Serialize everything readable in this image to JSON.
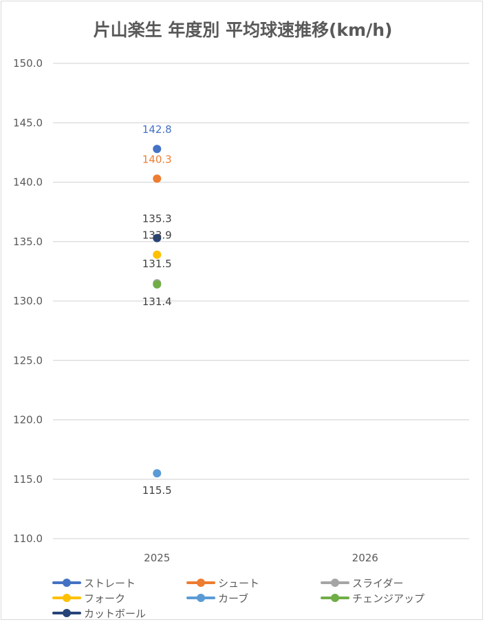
{
  "chart_data": {
    "type": "scatter",
    "title": "片山楽生 年度別 平均球速推移(km/h)",
    "categories": [
      "2025",
      "2026"
    ],
    "ylim": [
      110,
      150
    ],
    "yticks": [
      "150.0",
      "145.0",
      "140.0",
      "135.0",
      "130.0",
      "125.0",
      "120.0",
      "115.0",
      "110.0"
    ],
    "grid": true,
    "legend_position": "bottom",
    "series": [
      {
        "name": "ストレート",
        "color": "#4472c4",
        "values": [
          142.8,
          null
        ],
        "labels": [
          "142.8",
          ""
        ],
        "label_pos": "above",
        "label_color": "#4472c4"
      },
      {
        "name": "シュート",
        "color": "#ed7d31",
        "values": [
          140.3,
          null
        ],
        "labels": [
          "140.3",
          ""
        ],
        "label_pos": "above",
        "label_color": "#ed7d31"
      },
      {
        "name": "スライダー",
        "color": "#a5a5a5",
        "values": [
          131.5,
          null
        ],
        "labels": [
          "131.5",
          ""
        ],
        "label_pos": "above",
        "label_color": "#404040"
      },
      {
        "name": "フォーク",
        "color": "#ffc000",
        "values": [
          133.9,
          null
        ],
        "labels": [
          "133.9",
          ""
        ],
        "label_pos": "above",
        "label_color": "#404040"
      },
      {
        "name": "カーブ",
        "color": "#5b9bd5",
        "values": [
          115.5,
          null
        ],
        "labels": [
          "115.5",
          ""
        ],
        "label_pos": "below",
        "label_color": "#404040"
      },
      {
        "name": "チェンジアップ",
        "color": "#70ad47",
        "values": [
          131.4,
          null
        ],
        "labels": [
          "131.4",
          ""
        ],
        "label_pos": "below",
        "label_color": "#404040"
      },
      {
        "name": "カットボール",
        "color": "#264478",
        "values": [
          135.3,
          null
        ],
        "labels": [
          "135.3",
          ""
        ],
        "label_pos": "above",
        "label_color": "#404040"
      }
    ]
  }
}
